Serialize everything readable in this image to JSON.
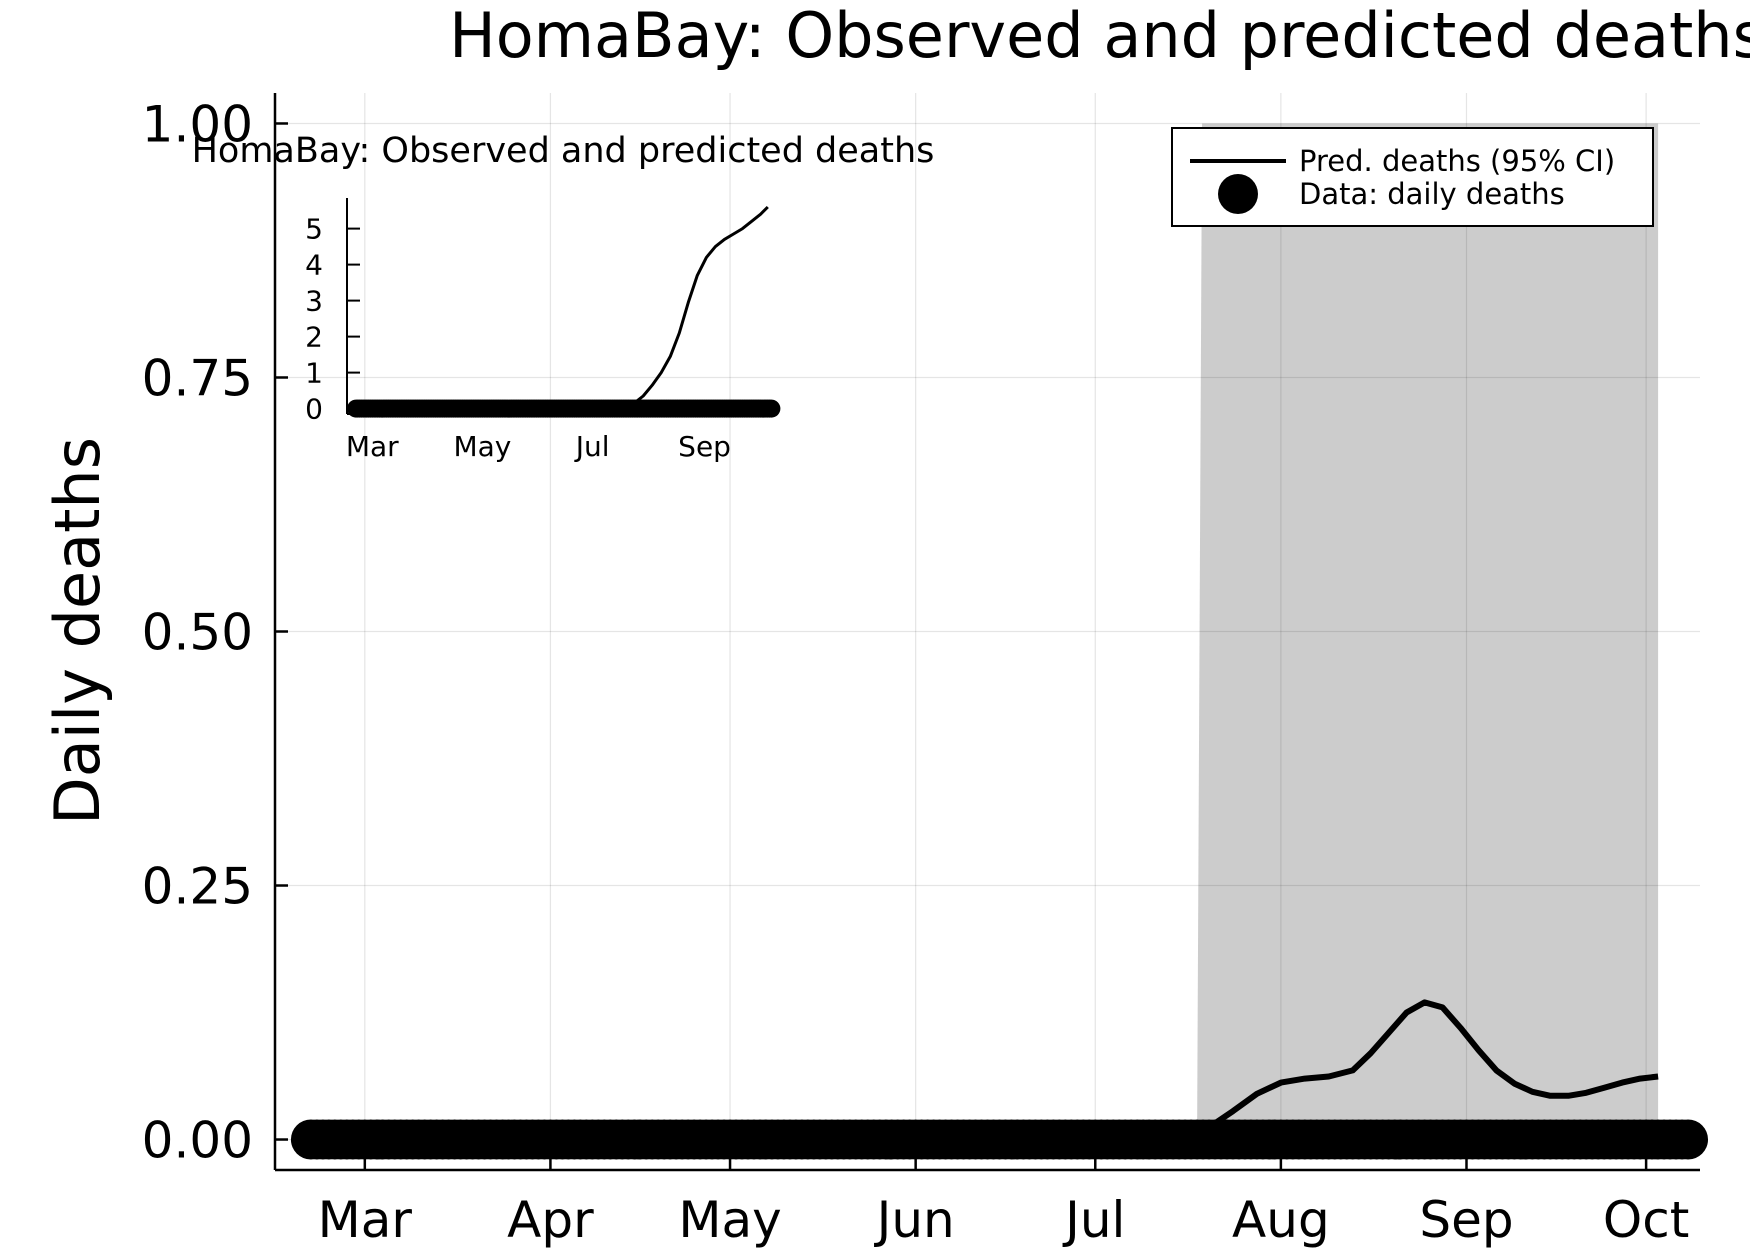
{
  "chart_data": [
    {
      "type": "line",
      "title": "HomaBay: Observed and predicted deaths",
      "xlabel": "",
      "ylabel": "Daily deaths",
      "x_ticks": [
        "Mar",
        "Apr",
        "May",
        "Jun",
        "Jul",
        "Aug",
        "Sep",
        "Oct"
      ],
      "x_tick_days": [
        60,
        91,
        121,
        152,
        182,
        213,
        244,
        274
      ],
      "xlim_days": [
        45,
        283
      ],
      "y_ticks": [
        "0.00",
        "0.25",
        "0.50",
        "0.75",
        "1.00"
      ],
      "y_tick_values": [
        0,
        0.25,
        0.5,
        0.75,
        1.0
      ],
      "ylim": [
        -0.03,
        1.03
      ],
      "grid": true,
      "legend_position": "top-right",
      "legend": [
        "Pred. deaths (95% CI)",
        "Data: daily deaths"
      ],
      "ci_band": {
        "x_days": [
          199,
          276
        ],
        "lower": [
          0,
          0
        ],
        "upper": [
          1.0,
          1.0
        ]
      },
      "series": [
        {
          "name": "Pred. deaths (95% CI)",
          "style": "line",
          "x_days": [
            197,
            201,
            205,
            209,
            213,
            217,
            221,
            225,
            228,
            231,
            234,
            237,
            240,
            243,
            246,
            249,
            252,
            255,
            258,
            261,
            264,
            267,
            270,
            273,
            276
          ],
          "values": [
            0.0,
            0.012,
            0.028,
            0.045,
            0.056,
            0.06,
            0.062,
            0.068,
            0.085,
            0.105,
            0.125,
            0.135,
            0.13,
            0.11,
            0.088,
            0.068,
            0.055,
            0.047,
            0.043,
            0.043,
            0.046,
            0.051,
            0.056,
            0.06,
            0.062
          ]
        },
        {
          "name": "Data: daily deaths",
          "style": "points",
          "x_days_range": [
            51,
            281
          ],
          "value": 0
        }
      ]
    },
    {
      "type": "line",
      "title": "HomaBay: Observed and predicted deaths",
      "x_ticks": [
        "Mar",
        "May",
        "Jul",
        "Sep"
      ],
      "x_tick_days": [
        60,
        121,
        182,
        244
      ],
      "xlim_days": [
        46,
        283
      ],
      "y_ticks": [
        "0",
        "1",
        "2",
        "3",
        "4",
        "5"
      ],
      "y_tick_values": [
        0,
        1,
        2,
        3,
        4,
        5
      ],
      "ylim": [
        -0.15,
        5.85
      ],
      "grid": false,
      "series": [
        {
          "name": "Pred. deaths (95% CI)",
          "style": "line",
          "x_days": [
            51,
            100,
            150,
            180,
            190,
            195,
            200,
            205,
            210,
            215,
            220,
            225,
            230,
            235,
            240,
            245,
            250,
            255,
            260,
            265,
            270,
            275,
            279
          ],
          "values": [
            0,
            0,
            0,
            0,
            0,
            0.02,
            0.06,
            0.15,
            0.35,
            0.65,
            1.0,
            1.45,
            2.1,
            2.95,
            3.7,
            4.2,
            4.5,
            4.7,
            4.85,
            5.0,
            5.2,
            5.4,
            5.6
          ]
        },
        {
          "name": "Data: daily deaths",
          "style": "points",
          "x_days_range": [
            51,
            281
          ],
          "value": 0
        }
      ]
    }
  ]
}
